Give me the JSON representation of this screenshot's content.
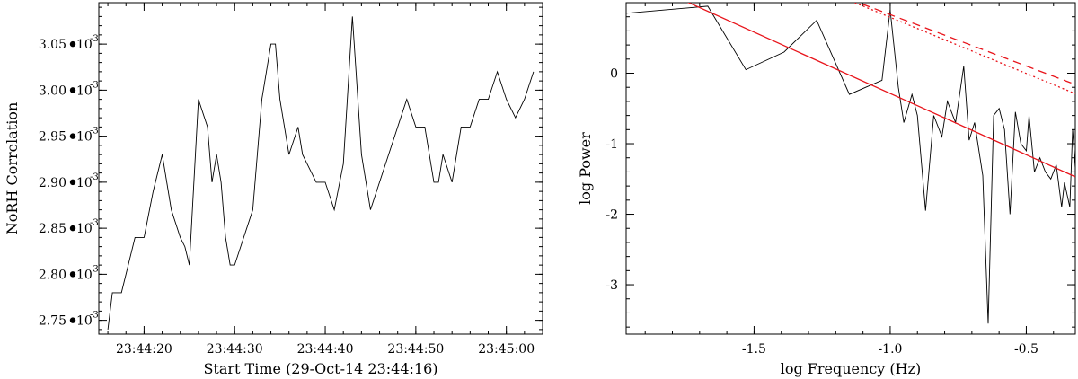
{
  "chart_data": [
    {
      "type": "line",
      "xlabel": "Start Time (29-Oct-14 23:44:16)",
      "ylabel": "NoRH Correlation",
      "x_unit": "seconds",
      "xlim": [
        -1,
        48
      ],
      "ylim": [
        2.735,
        3.095
      ],
      "x_ticks": [
        {
          "value": 4,
          "label": "23:44:20"
        },
        {
          "value": 14,
          "label": "23:44:30"
        },
        {
          "value": 24,
          "label": "23:44:40"
        },
        {
          "value": 34,
          "label": "23:44:50"
        },
        {
          "value": 44,
          "label": "23:45:00"
        }
      ],
      "y_ticks": [
        {
          "value": 2.75,
          "mantissa": "2.75",
          "exp": "-3"
        },
        {
          "value": 2.8,
          "mantissa": "2.80",
          "exp": "-3"
        },
        {
          "value": 2.85,
          "mantissa": "2.85",
          "exp": "-3"
        },
        {
          "value": 2.9,
          "mantissa": "2.90",
          "exp": "-3"
        },
        {
          "value": 2.95,
          "mantissa": "2.95",
          "exp": "-3"
        },
        {
          "value": 3.0,
          "mantissa": "3.00",
          "exp": "-3"
        },
        {
          "value": 3.05,
          "mantissa": "3.05",
          "exp": "-3"
        }
      ],
      "series": [
        {
          "x": [
            0,
            0.5,
            1.5,
            3,
            4,
            5,
            6,
            7,
            8,
            8.5,
            9,
            10,
            11,
            11.5,
            12,
            12.5,
            13,
            13.5,
            14,
            15,
            16,
            17,
            18,
            18.5,
            19,
            20,
            21,
            21.5,
            22,
            23,
            24,
            25,
            26,
            27,
            28,
            29,
            30,
            31,
            32,
            33,
            34,
            35,
            36,
            36.5,
            37,
            38,
            39,
            40,
            41,
            42,
            43,
            44,
            45,
            46,
            47
          ],
          "y": [
            2.74,
            2.78,
            2.78,
            2.84,
            2.84,
            2.89,
            2.93,
            2.87,
            2.84,
            2.83,
            2.81,
            2.99,
            2.96,
            2.9,
            2.93,
            2.9,
            2.84,
            2.81,
            2.81,
            2.84,
            2.87,
            2.99,
            3.05,
            3.05,
            2.99,
            2.93,
            2.96,
            2.93,
            2.92,
            2.9,
            2.9,
            2.87,
            2.92,
            3.08,
            2.93,
            2.87,
            2.9,
            2.93,
            2.96,
            2.99,
            2.96,
            2.96,
            2.9,
            2.9,
            2.93,
            2.9,
            2.96,
            2.96,
            2.99,
            2.99,
            3.02,
            2.99,
            2.97,
            2.99,
            3.02
          ]
        }
      ]
    },
    {
      "type": "line",
      "xlabel": "log Frequency (Hz)",
      "ylabel": "log Power",
      "xlim": [
        -1.97,
        -0.32
      ],
      "ylim": [
        -3.7,
        1.0
      ],
      "x_ticks": [
        {
          "value": -1.5,
          "label": "-1.5"
        },
        {
          "value": -1.0,
          "label": "-1.0"
        },
        {
          "value": -0.5,
          "label": "-0.5"
        }
      ],
      "y_ticks": [
        {
          "value": 0,
          "label": "0"
        },
        {
          "value": -1,
          "label": "-1"
        },
        {
          "value": -2,
          "label": "-2"
        },
        {
          "value": -3,
          "label": "-3"
        }
      ],
      "series": [
        {
          "style": "solid-black",
          "x": [
            -1.97,
            -1.67,
            -1.53,
            -1.39,
            -1.27,
            -1.15,
            -1.09,
            -1.03,
            -1.0,
            -0.97,
            -0.95,
            -0.92,
            -0.9,
            -0.87,
            -0.84,
            -0.81,
            -0.79,
            -0.76,
            -0.73,
            -0.71,
            -0.69,
            -0.66,
            -0.64,
            -0.62,
            -0.6,
            -0.58,
            -0.56,
            -0.54,
            -0.52,
            -0.5,
            -0.49,
            -0.47,
            -0.45,
            -0.43,
            -0.41,
            -0.39,
            -0.37,
            -0.36,
            -0.34,
            -0.33,
            -0.32
          ],
          "y": [
            0.85,
            0.95,
            0.05,
            0.3,
            0.75,
            -0.3,
            -0.2,
            -0.1,
            0.9,
            -0.2,
            -0.7,
            -0.3,
            -0.6,
            -1.95,
            -0.6,
            -0.9,
            -0.4,
            -0.7,
            0.1,
            -0.95,
            -0.7,
            -1.45,
            -3.55,
            -0.6,
            -0.5,
            -0.8,
            -2.0,
            -0.55,
            -1.0,
            -1.1,
            -0.6,
            -1.4,
            -1.2,
            -1.4,
            -1.5,
            -1.3,
            -1.9,
            -1.55,
            -1.9,
            -0.8,
            -1.35
          ]
        },
        {
          "style": "solid-red",
          "x": [
            -1.97,
            -0.32
          ],
          "y": [
            1.4,
            -1.47
          ]
        },
        {
          "style": "dashed-red",
          "x": [
            -1.15,
            -0.32
          ],
          "y": [
            1.05,
            -0.16
          ]
        },
        {
          "style": "dotted-red",
          "x": [
            -1.13,
            -0.32
          ],
          "y": [
            1.0,
            -0.29
          ]
        }
      ]
    }
  ]
}
